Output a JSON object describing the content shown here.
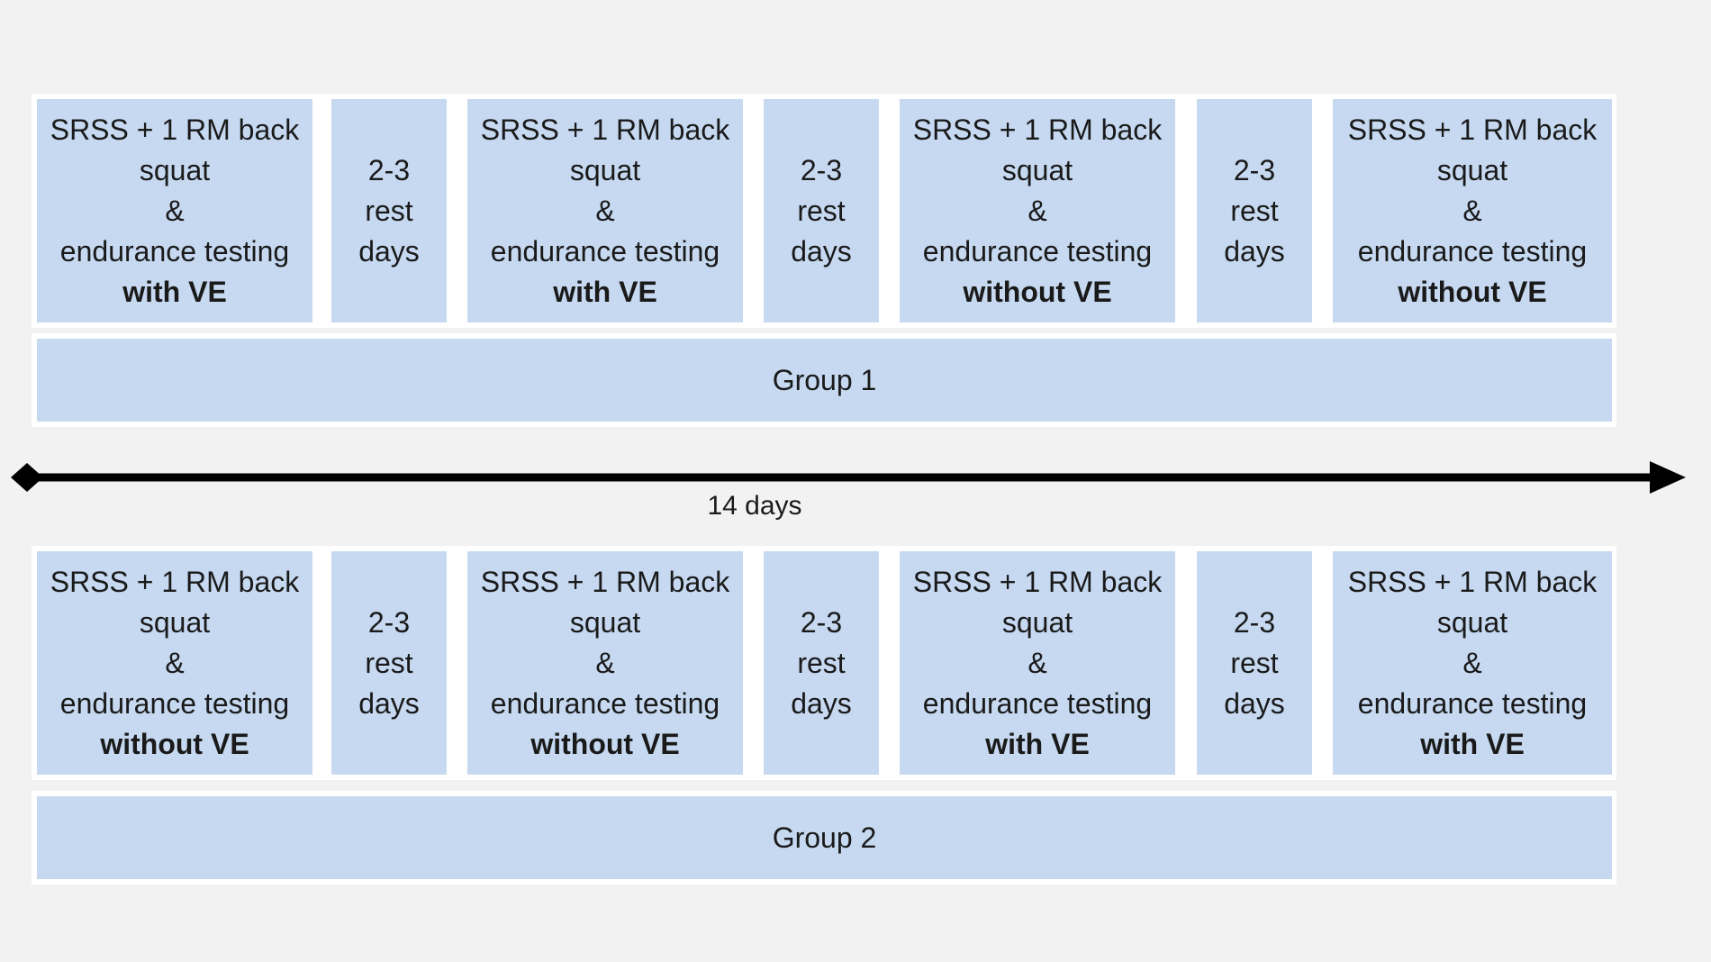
{
  "group1": {
    "cells": [
      {
        "lines": [
          "SRSS + 1 RM back",
          "squat",
          "&",
          "endurance testing"
        ],
        "condition": "with VE"
      },
      {
        "lines": [
          "2-3",
          "rest",
          "days"
        ]
      },
      {
        "lines": [
          "SRSS + 1 RM back",
          "squat",
          "&",
          "endurance testing"
        ],
        "condition": "with VE"
      },
      {
        "lines": [
          "2-3",
          "rest",
          "days"
        ]
      },
      {
        "lines": [
          "SRSS + 1 RM back",
          "squat",
          "&",
          "endurance testing"
        ],
        "condition": "without VE"
      },
      {
        "lines": [
          "2-3",
          "rest",
          "days"
        ]
      },
      {
        "lines": [
          "SRSS + 1 RM back",
          "squat",
          "&",
          "endurance testing"
        ],
        "condition": "without VE"
      }
    ],
    "label": "Group 1"
  },
  "timeline": {
    "label": "14 days"
  },
  "group2": {
    "cells": [
      {
        "lines": [
          "SRSS + 1 RM back",
          "squat",
          "&",
          "endurance testing"
        ],
        "condition": "without VE"
      },
      {
        "lines": [
          "2-3",
          "rest",
          "days"
        ]
      },
      {
        "lines": [
          "SRSS + 1 RM back",
          "squat",
          "&",
          "endurance testing"
        ],
        "condition": "without VE"
      },
      {
        "lines": [
          "2-3",
          "rest",
          "days"
        ]
      },
      {
        "lines": [
          "SRSS + 1 RM back",
          "squat",
          "&",
          "endurance testing"
        ],
        "condition": "with VE"
      },
      {
        "lines": [
          "2-3",
          "rest",
          "days"
        ]
      },
      {
        "lines": [
          "SRSS + 1 RM back",
          "squat",
          "&",
          "endurance testing"
        ],
        "condition": "with VE"
      }
    ],
    "label": "Group 2"
  },
  "colors": {
    "box_fill": "#c6d9f1",
    "background": "#f2f2f2",
    "arrow": "#000000"
  }
}
